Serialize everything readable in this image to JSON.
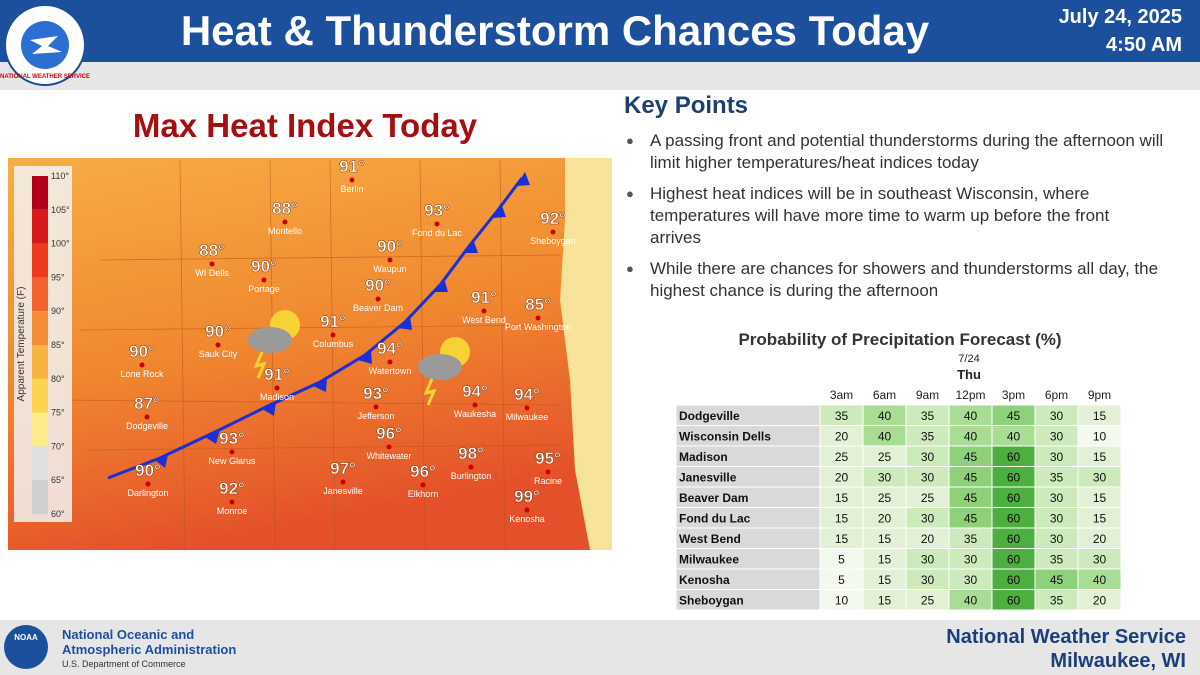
{
  "header": {
    "logo_text": "NATIONAL WEATHER SERVICE",
    "title": "Heat & Thunderstorm Chances Today",
    "date": "July 24, 2025",
    "time": "4:50 AM"
  },
  "map": {
    "title": "Max Heat Index Today",
    "legend_title": "Apparent Temperature (F)",
    "legend_labels": [
      "110°",
      "105°",
      "100°",
      "95°",
      "90°",
      "85°",
      "80°",
      "75°",
      "70°",
      "65°",
      "60°"
    ],
    "cities": [
      {
        "name": "Berlin",
        "value": "91°"
      },
      {
        "name": "Montello",
        "value": "88°"
      },
      {
        "name": "Fond du Lac",
        "value": "93°"
      },
      {
        "name": "Sheboygan",
        "value": "92°"
      },
      {
        "name": "WI Dells",
        "value": "88°"
      },
      {
        "name": "Portage",
        "value": "90°"
      },
      {
        "name": "Waupun",
        "value": "90°"
      },
      {
        "name": "Beaver Dam",
        "value": "90°"
      },
      {
        "name": "West Bend",
        "value": "91°"
      },
      {
        "name": "Port Washington",
        "value": "85°"
      },
      {
        "name": "Sauk City",
        "value": "90°"
      },
      {
        "name": "Columbus",
        "value": "91°"
      },
      {
        "name": "Watertown",
        "value": "94°"
      },
      {
        "name": "Lone Rock",
        "value": "90°"
      },
      {
        "name": "Madison",
        "value": "91°"
      },
      {
        "name": "Jefferson",
        "value": "93°"
      },
      {
        "name": "Waukesha",
        "value": "94°"
      },
      {
        "name": "Milwaukee",
        "value": "94°"
      },
      {
        "name": "Dodgeville",
        "value": "87°"
      },
      {
        "name": "Whitewater",
        "value": "96°"
      },
      {
        "name": "New Glarus",
        "value": "93°"
      },
      {
        "name": "Janesville",
        "value": "97°"
      },
      {
        "name": "Elkhorn",
        "value": "96°"
      },
      {
        "name": "Burlington",
        "value": "98°"
      },
      {
        "name": "Racine",
        "value": "95°"
      },
      {
        "name": "Darlington",
        "value": "90°"
      },
      {
        "name": "Monroe",
        "value": "92°"
      },
      {
        "name": "Kenosha",
        "value": "99°"
      }
    ]
  },
  "key_points": {
    "title": "Key Points",
    "bullets": [
      "A passing front and potential thunderstorms during the afternoon will limit higher temperatures/heat indices today",
      "Highest heat indices will be in southeast Wisconsin, where temperatures will have more time to warm up before the front arrives",
      "While there are chances for showers and thunderstorms all day, the highest chance is during the afternoon"
    ]
  },
  "table": {
    "title": "Probability of Precipitation Forecast (%)",
    "date": "7/24",
    "day": "Thu",
    "columns": [
      "3am",
      "6am",
      "9am",
      "12pm",
      "3pm",
      "6pm",
      "9pm"
    ],
    "rows": [
      {
        "name": "Dodgeville",
        "values": [
          35,
          40,
          35,
          40,
          45,
          30,
          15
        ]
      },
      {
        "name": "Wisconsin Dells",
        "values": [
          20,
          40,
          35,
          40,
          40,
          30,
          10
        ]
      },
      {
        "name": "Madison",
        "values": [
          25,
          25,
          30,
          45,
          60,
          30,
          15
        ]
      },
      {
        "name": "Janesville",
        "values": [
          20,
          30,
          30,
          45,
          60,
          35,
          30
        ]
      },
      {
        "name": "Beaver Dam",
        "values": [
          15,
          25,
          25,
          45,
          60,
          30,
          15
        ]
      },
      {
        "name": "Fond du Lac",
        "values": [
          15,
          20,
          30,
          45,
          60,
          30,
          15
        ]
      },
      {
        "name": "West Bend",
        "values": [
          15,
          15,
          20,
          35,
          60,
          30,
          20
        ]
      },
      {
        "name": "Milwaukee",
        "values": [
          5,
          15,
          30,
          30,
          60,
          35,
          30
        ]
      },
      {
        "name": "Kenosha",
        "values": [
          5,
          15,
          30,
          30,
          60,
          45,
          40
        ]
      },
      {
        "name": "Sheboygan",
        "values": [
          10,
          15,
          25,
          40,
          60,
          35,
          20
        ]
      }
    ]
  },
  "footer": {
    "noaa_logo_text": "NOAA",
    "agency_lines": [
      "National Oceanic and",
      "Atmospheric Administration"
    ],
    "department": "U.S. Department of Commerce",
    "office_name": "National Weather Service",
    "office_location": "Milwaukee, WI"
  }
}
